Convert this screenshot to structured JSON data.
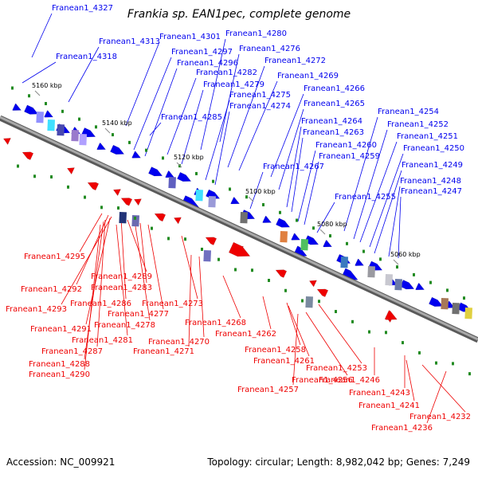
{
  "title": "Frankia sp. EAN1pec, complete genome",
  "footer": {
    "accession": "Accession: NC_009921",
    "topology": "Topology: circular; Length: 8,982,042 bp; Genes: 7,249"
  },
  "colors": {
    "forward_genes": "#0000ee",
    "reverse_genes": "#ee0000",
    "backbone": "#808080",
    "marker": "#228b22"
  },
  "scale_labels": [
    "5160 kbp",
    "5140 kbp",
    "5120 kbp",
    "5100 kbp",
    "5080 kbp",
    "5060 kbp"
  ],
  "forward_labels": [
    "Franean1_4327",
    "Franean1_4313",
    "Franean1_4301",
    "Franean1_4280",
    "Franean1_4318",
    "Franean1_4297",
    "Franean1_4276",
    "Franean1_4296",
    "Franean1_4272",
    "Franean1_4282",
    "Franean1_4269",
    "Franean1_4279",
    "Franean1_4266",
    "Franean1_4275",
    "Franean1_4274",
    "Franean1_4265",
    "Franean1_4254",
    "Franean1_4285",
    "Franean1_4264",
    "Franean1_4252",
    "Franean1_4263",
    "Franean1_4251",
    "Franean1_4260",
    "Franean1_4250",
    "Franean1_4259",
    "Franean1_4267",
    "Franean1_4249",
    "Franean1_4248",
    "Franean1_4247",
    "Franean1_4255"
  ],
  "reverse_labels": [
    "Franean1_4295",
    "Franean1_4289",
    "Franean1_4292",
    "Franean1_4283",
    "Franean1_4286",
    "Franean1_4273",
    "Franean1_4293",
    "Franean1_4277",
    "Franean1_4278",
    "Franean1_4291",
    "Franean1_4268",
    "Franean1_4281",
    "Franean1_4262",
    "Franean1_4270",
    "Franean1_4287",
    "Franean1_4271",
    "Franean1_4258",
    "Franean1_4288",
    "Franean1_4261",
    "Franean1_4253",
    "Franean1_4290",
    "Franean1_4256",
    "Franean1_4246",
    "Franean1_4257",
    "Franean1_4243",
    "Franean1_4241",
    "Franean1_4232",
    "Franean1_4236"
  ]
}
